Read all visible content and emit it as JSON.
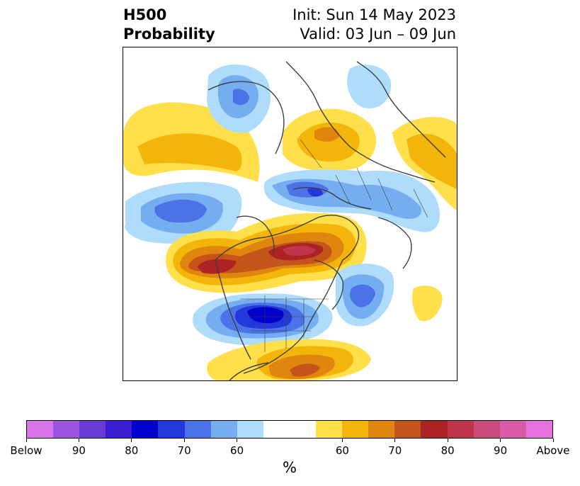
{
  "title": {
    "left_line1": "H500",
    "left_line2": "Probability",
    "right_line1": "Init: Sun 14 May 2023",
    "right_line2": "Valid: 03 Jun – 09 Jun"
  },
  "colorbar": {
    "unit": "%",
    "below_colors": [
      "#d974e8",
      "#9b55e0",
      "#6a3ad8",
      "#3a1fd4",
      "#0000cc",
      "#2338db",
      "#4b72e6",
      "#74aef0",
      "#aedcfa"
    ],
    "above_colors": [
      "#ffe04a",
      "#f3b50a",
      "#e0860f",
      "#c4541a",
      "#ad2222",
      "#c0354a",
      "#cc4b7a",
      "#d85aa8",
      "#e673dd"
    ],
    "tick_labels": [
      "Below",
      "90",
      "80",
      "70",
      "60",
      "60",
      "70",
      "80",
      "90",
      "Above"
    ]
  },
  "map": {
    "projection": "north-polar-stereographic",
    "coastline_color": "#404040"
  }
}
